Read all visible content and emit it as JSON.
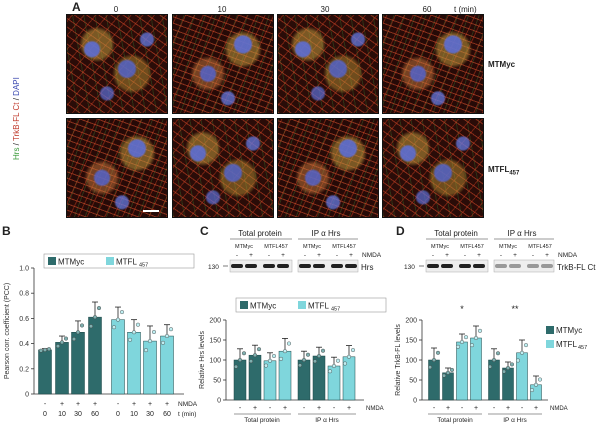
{
  "panelA": {
    "letter": "A",
    "time_labels": [
      "0",
      "10",
      "30",
      "60"
    ],
    "time_unit": "t (min)",
    "side_label_parts": [
      "Hrs",
      " / ",
      "TrkB-FL Ct",
      " / ",
      "DAPI"
    ],
    "row_labels": [
      "MTMyc",
      "MTFL"
    ],
    "row_label_sub": "457"
  },
  "panelB": {
    "letter": "B",
    "legend": [
      "MTMyc",
      "MTFL"
    ],
    "legend_sub": "457",
    "nmda_label": "NMDA",
    "t_label": "t (min)",
    "nmda_signs": [
      "-",
      "+",
      "+",
      "+",
      "-",
      "+",
      "+",
      "+"
    ],
    "t_ticks": [
      "0",
      "10",
      "30",
      "60",
      "0",
      "10",
      "30",
      "60"
    ]
  },
  "panelC": {
    "letter": "C",
    "blot_header_left": "Total protein",
    "blot_header_right": "IP α Hrs",
    "lane_groups": [
      "MTMyc",
      "MTFL457",
      "MTMyc",
      "MTFL457"
    ],
    "nmda_signs": [
      "-",
      "+",
      "-",
      "+",
      "-",
      "+",
      "-",
      "+"
    ],
    "nmda_label": "NMDA",
    "marker": "130",
    "band_label": "Hrs",
    "legend": [
      "MTMyc",
      "MTFL"
    ],
    "legend_sub": "457",
    "group_labels": [
      "Total protein",
      "IP α Hrs"
    ]
  },
  "panelD": {
    "letter": "D",
    "blot_header_left": "Total protein",
    "blot_header_right": "IP α Hrs",
    "lane_groups": [
      "MTMyc",
      "MTFL457",
      "MTMyc",
      "MTFL457"
    ],
    "nmda_signs": [
      "-",
      "+",
      "-",
      "+",
      "-",
      "+",
      "-",
      "+"
    ],
    "nmda_label": "NMDA",
    "marker": "130",
    "band_label": "TrkB-FL Ct",
    "legend": [
      "MTMyc",
      "MTFL"
    ],
    "legend_sub": "457",
    "group_labels": [
      "Total protein",
      "IP α Hrs"
    ],
    "sig_marks": [
      "*",
      "**"
    ]
  },
  "colors": {
    "dark": "#2e6b6b",
    "light": "#7fd6dc",
    "point_light": "#bfeff2"
  },
  "chart_data": [
    {
      "type": "bar",
      "panel": "B",
      "xlabel": "",
      "ylabel": "Pearson corr. coefficient (PCC)",
      "ylim": [
        0,
        1.0
      ],
      "yticks": [
        "0",
        "0.2",
        "0.4",
        "0.6",
        "0.8",
        "1.0"
      ],
      "categories": [
        "0",
        "10",
        "30",
        "60",
        "0",
        "10",
        "30",
        "60"
      ],
      "series": [
        {
          "name": "MTMyc",
          "values": [
            0.35,
            0.41,
            0.49,
            0.61,
            null,
            null,
            null,
            null
          ],
          "errors": [
            0.01,
            0.05,
            0.09,
            0.12,
            null,
            null,
            null,
            null
          ]
        },
        {
          "name": "MTFL457",
          "values": [
            null,
            null,
            null,
            null,
            0.59,
            0.49,
            0.42,
            0.46
          ],
          "errors": [
            null,
            null,
            null,
            null,
            0.1,
            0.1,
            0.12,
            0.09
          ]
        }
      ]
    },
    {
      "type": "bar",
      "panel": "C",
      "xlabel": "",
      "ylabel": "Relative Hrs levels",
      "ylim": [
        0,
        200
      ],
      "yticks": [
        "0",
        "50",
        "100",
        "150",
        "200"
      ],
      "categories": [
        "-",
        "+",
        "-",
        "+",
        "-",
        "+",
        "-",
        "+"
      ],
      "series": [
        {
          "name": "MTMyc",
          "values": [
            100,
            112,
            null,
            null,
            100,
            110,
            null,
            null
          ],
          "errors": [
            28,
            25,
            null,
            null,
            22,
            22,
            null,
            null
          ]
        },
        {
          "name": "MTFL457",
          "values": [
            null,
            null,
            98,
            122,
            null,
            null,
            85,
            108
          ],
          "errors": [
            null,
            null,
            20,
            32,
            null,
            null,
            22,
            28
          ]
        }
      ]
    },
    {
      "type": "bar",
      "panel": "D",
      "xlabel": "",
      "ylabel": "Relative TrkB-FL levels",
      "ylim": [
        0,
        200
      ],
      "yticks": [
        "0",
        "50",
        "100",
        "150",
        "200"
      ],
      "categories": [
        "-",
        "+",
        "-",
        "+",
        "-",
        "+",
        "-",
        "+"
      ],
      "series": [
        {
          "name": "MTMyc",
          "values": [
            100,
            68,
            null,
            null,
            100,
            80,
            null,
            null
          ],
          "errors": [
            30,
            12,
            null,
            null,
            28,
            15,
            null,
            null
          ]
        },
        {
          "name": "MTFL457",
          "values": [
            null,
            null,
            145,
            155,
            null,
            null,
            118,
            38
          ],
          "errors": [
            null,
            null,
            20,
            30,
            null,
            null,
            32,
            22
          ]
        }
      ]
    }
  ]
}
